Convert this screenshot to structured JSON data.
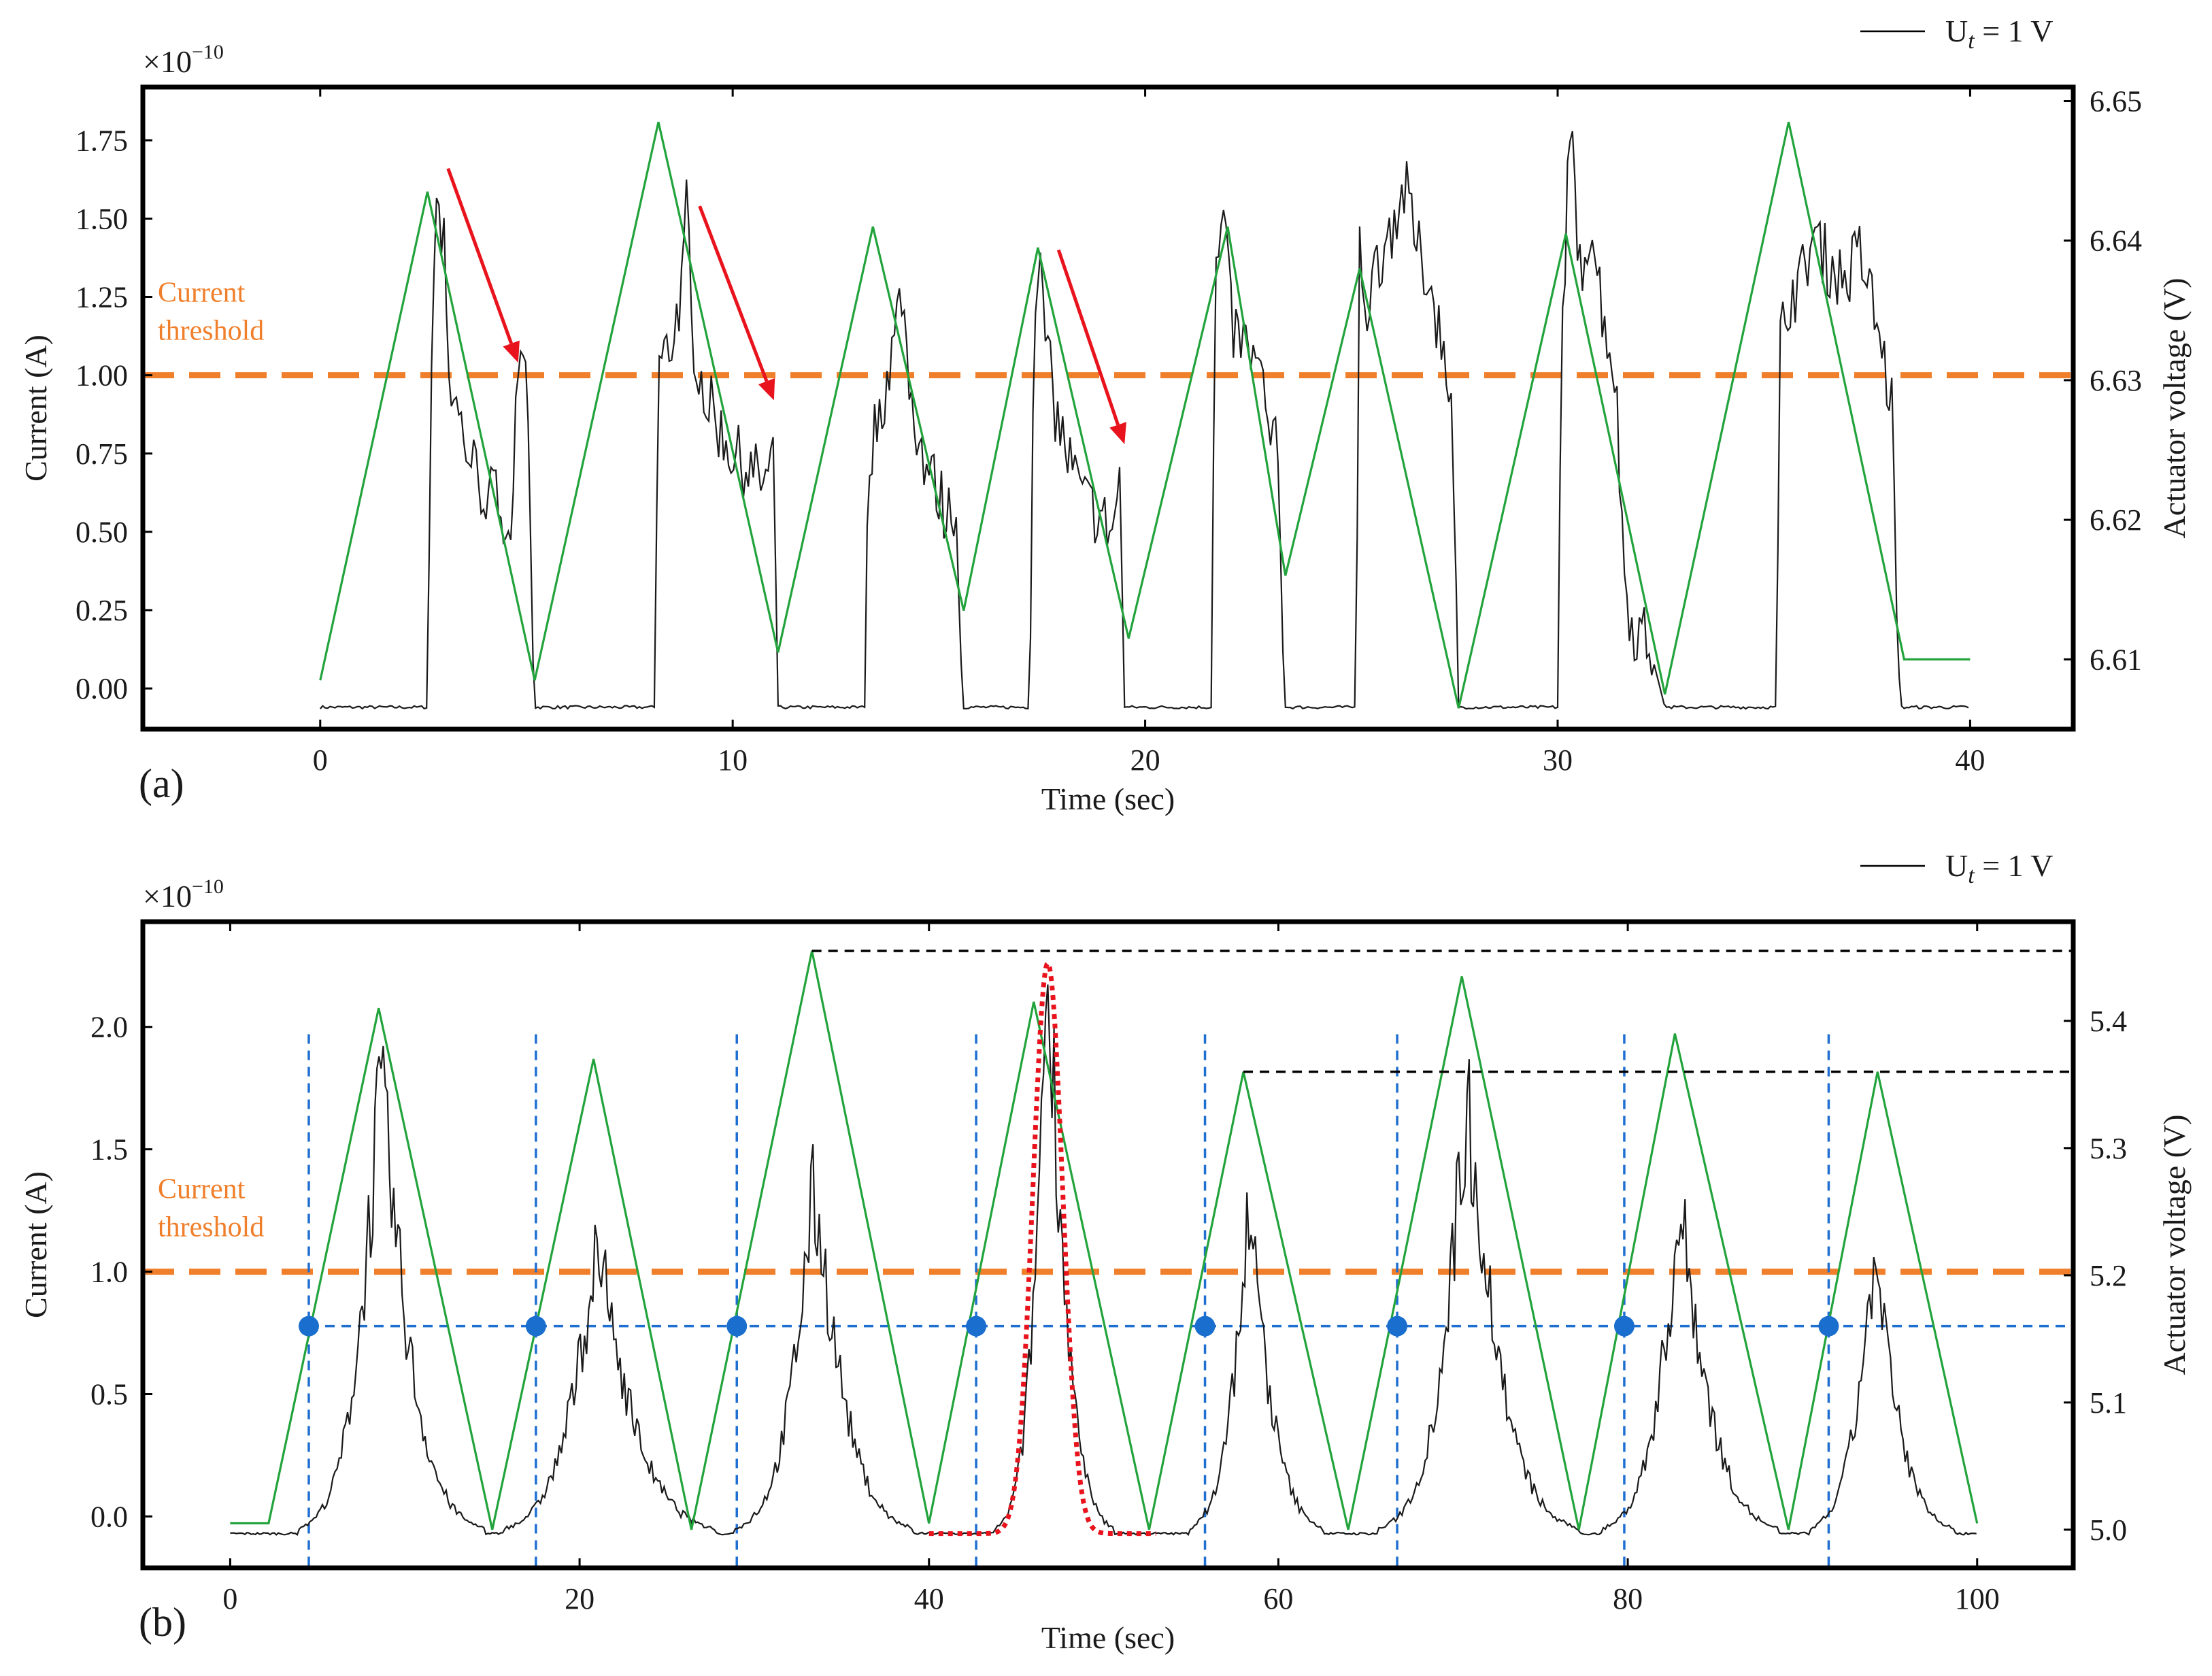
{
  "chart_data": [
    {
      "type": "line",
      "panel_label": "(a)",
      "xlabel": "Time (sec)",
      "ylabel": "Current (A)",
      "y2label": "Actuator voltage (V)",
      "y_scale_label": "×10",
      "y_scale_exponent": "−10",
      "xlim": [
        -4.3,
        42.5
      ],
      "ylim": [
        -0.13,
        1.92
      ],
      "y2lim": [
        6.605,
        6.651
      ],
      "xticks": [
        0,
        10,
        20,
        30,
        40
      ],
      "xtick_labels": [
        "0",
        "10",
        "20",
        "30",
        "40"
      ],
      "yticks": [
        0,
        0.25,
        0.5,
        0.75,
        1.0,
        1.25,
        1.5,
        1.75
      ],
      "ytick_labels": [
        "0.00",
        "0.25",
        "0.50",
        "0.75",
        "1.00",
        "1.25",
        "1.50",
        "1.75"
      ],
      "y2ticks": [
        6.61,
        6.62,
        6.63,
        6.64,
        6.65
      ],
      "y2tick_labels": [
        "6.61",
        "6.62",
        "6.63",
        "6.64",
        "6.65"
      ],
      "legend": {
        "label_base": "U",
        "label_sub": "t",
        "label_rest": " = 1 V",
        "position": "top-right",
        "color": "#000000"
      },
      "threshold": {
        "value": 1.0,
        "label_line1": "Current",
        "label_line2": "threshold",
        "color": "#f07f2b"
      },
      "voltage_series": {
        "name": "Actuator voltage",
        "color": "#22a33c",
        "x": [
          0,
          2.6,
          5.2,
          8.2,
          11.1,
          13.4,
          15.6,
          17.4,
          19.6,
          22.0,
          23.4,
          25.2,
          27.6,
          30.2,
          32.6,
          35.6,
          38.4,
          40.0
        ],
        "y": [
          6.6085,
          6.6435,
          6.6085,
          6.6485,
          6.6105,
          6.641,
          6.6135,
          6.6395,
          6.6115,
          6.641,
          6.616,
          6.638,
          6.6065,
          6.6405,
          6.6075,
          6.6485,
          6.61,
          6.61
        ]
      },
      "current_series": {
        "name": "Ut = 1 V",
        "color": "#1a1a1a",
        "baseline": -0.06,
        "pulses": [
          {
            "start": 2.6,
            "end": 5.2,
            "points": [
              [
                2.6,
                -0.06
              ],
              [
                2.7,
                1.1
              ],
              [
                2.8,
                1.65
              ],
              [
                2.9,
                1.4
              ],
              [
                3.0,
                1.55
              ],
              [
                3.1,
                1.0
              ],
              [
                3.3,
                0.9
              ],
              [
                3.6,
                0.75
              ],
              [
                4.0,
                0.62
              ],
              [
                4.4,
                0.6
              ],
              [
                4.6,
                0.48
              ],
              [
                4.8,
                1.0
              ],
              [
                5.0,
                0.95
              ],
              [
                5.2,
                -0.06
              ]
            ]
          },
          {
            "start": 8.1,
            "end": 11.1,
            "points": [
              [
                8.1,
                -0.06
              ],
              [
                8.2,
                1.02
              ],
              [
                8.5,
                1.1
              ],
              [
                8.8,
                1.3
              ],
              [
                8.9,
                1.58
              ],
              [
                9.0,
                1.15
              ],
              [
                9.3,
                0.95
              ],
              [
                9.6,
                0.85
              ],
              [
                10.0,
                0.75
              ],
              [
                10.4,
                0.7
              ],
              [
                10.8,
                0.65
              ],
              [
                11.0,
                0.7
              ],
              [
                11.1,
                -0.06
              ]
            ]
          },
          {
            "start": 13.2,
            "end": 15.6,
            "points": [
              [
                13.2,
                -0.06
              ],
              [
                13.3,
                0.75
              ],
              [
                13.6,
                0.9
              ],
              [
                13.9,
                1.1
              ],
              [
                14.1,
                1.28
              ],
              [
                14.3,
                0.95
              ],
              [
                14.6,
                0.75
              ],
              [
                14.9,
                0.65
              ],
              [
                15.2,
                0.55
              ],
              [
                15.4,
                0.6
              ],
              [
                15.6,
                -0.06
              ]
            ]
          },
          {
            "start": 17.2,
            "end": 19.5,
            "points": [
              [
                17.2,
                -0.06
              ],
              [
                17.3,
                1.2
              ],
              [
                17.4,
                1.4
              ],
              [
                17.6,
                1.1
              ],
              [
                17.8,
                0.9
              ],
              [
                18.1,
                0.75
              ],
              [
                18.5,
                0.6
              ],
              [
                18.9,
                0.55
              ],
              [
                19.2,
                0.5
              ],
              [
                19.4,
                0.68
              ],
              [
                19.5,
                -0.06
              ]
            ]
          },
          {
            "start": 21.6,
            "end": 23.4,
            "points": [
              [
                21.6,
                -0.06
              ],
              [
                21.7,
                1.3
              ],
              [
                21.9,
                1.5
              ],
              [
                22.1,
                1.15
              ],
              [
                22.4,
                1.1
              ],
              [
                22.8,
                1.0
              ],
              [
                23.0,
                0.8
              ],
              [
                23.2,
                0.75
              ],
              [
                23.4,
                -0.06
              ]
            ]
          },
          {
            "start": 25.1,
            "end": 27.6,
            "points": [
              [
                25.1,
                -0.06
              ],
              [
                25.2,
                1.4
              ],
              [
                25.4,
                1.2
              ],
              [
                25.6,
                1.35
              ],
              [
                25.9,
                1.45
              ],
              [
                26.3,
                1.6
              ],
              [
                26.6,
                1.4
              ],
              [
                26.9,
                1.3
              ],
              [
                27.2,
                1.1
              ],
              [
                27.4,
                1.0
              ],
              [
                27.6,
                -0.06
              ]
            ]
          },
          {
            "start": 30.0,
            "end": 32.6,
            "points": [
              [
                30.0,
                -0.06
              ],
              [
                30.1,
                1.1
              ],
              [
                30.3,
                1.85
              ],
              [
                30.5,
                1.3
              ],
              [
                30.8,
                1.5
              ],
              [
                31.1,
                1.2
              ],
              [
                31.4,
                1.0
              ],
              [
                31.6,
                0.4
              ],
              [
                31.8,
                0.2
              ],
              [
                32.2,
                0.15
              ],
              [
                32.6,
                -0.06
              ]
            ]
          },
          {
            "start": 35.3,
            "end": 38.3,
            "points": [
              [
                35.3,
                -0.06
              ],
              [
                35.4,
                1.1
              ],
              [
                35.6,
                1.25
              ],
              [
                35.9,
                1.3
              ],
              [
                36.2,
                1.45
              ],
              [
                36.6,
                1.35
              ],
              [
                37.0,
                1.3
              ],
              [
                37.3,
                1.4
              ],
              [
                37.6,
                1.25
              ],
              [
                37.9,
                1.05
              ],
              [
                38.1,
                0.9
              ],
              [
                38.3,
                -0.06
              ]
            ]
          }
        ]
      },
      "arrows": [
        {
          "x1": 3.1,
          "y1": 1.66,
          "x2": 4.8,
          "y2": 1.04
        },
        {
          "x1": 9.2,
          "y1": 1.54,
          "x2": 11.0,
          "y2": 0.92
        },
        {
          "x1": 17.9,
          "y1": 1.4,
          "x2": 19.5,
          "y2": 0.78
        }
      ],
      "arrow_color": "#e8131c"
    },
    {
      "type": "line",
      "panel_label": "(b)",
      "xlabel": "Time (sec)",
      "ylabel": "Current (A)",
      "y2label": "Actuator voltage (V)",
      "y_scale_label": "×10",
      "y_scale_exponent": "−10",
      "xlim": [
        -5,
        105.5
      ],
      "ylim": [
        -0.21,
        2.43
      ],
      "y2lim": [
        4.97,
        5.478
      ],
      "xticks": [
        0,
        20,
        40,
        60,
        80,
        100
      ],
      "xtick_labels": [
        "0",
        "20",
        "40",
        "60",
        "80",
        "100"
      ],
      "yticks": [
        0,
        0.5,
        1.0,
        1.5,
        2.0
      ],
      "ytick_labels": [
        "0.0",
        "0.5",
        "1.0",
        "1.5",
        "2.0"
      ],
      "y2ticks": [
        5.0,
        5.1,
        5.2,
        5.3,
        5.4
      ],
      "y2tick_labels": [
        "5.0",
        "5.1",
        "5.2",
        "5.3",
        "5.4"
      ],
      "legend": {
        "label_base": "U",
        "label_sub": "t",
        "label_rest": " = 1 V",
        "position": "top-right",
        "color": "#000000"
      },
      "threshold": {
        "value": 1.0,
        "label_line1": "Current",
        "label_line2": "threshold",
        "color": "#f07f2b"
      },
      "voltage_series": {
        "name": "Actuator voltage",
        "color": "#22a33c",
        "x": [
          0,
          2.2,
          8.5,
          15.0,
          20.8,
          26.4,
          33.3,
          40.0,
          46.0,
          52.6,
          58.0,
          64.0,
          70.5,
          77.2,
          82.7,
          89.2,
          94.3,
          100.0
        ],
        "y": [
          5.005,
          5.005,
          5.41,
          5.0,
          5.37,
          5.0,
          5.455,
          5.005,
          5.415,
          5.0,
          5.36,
          5.0,
          5.435,
          5.0,
          5.39,
          5.0,
          5.36,
          5.005
        ]
      },
      "current_series": {
        "name": "Ut = 1 V",
        "color": "#1a1a1a",
        "baseline": -0.07,
        "pulses": [
          {
            "center": 8.6,
            "peak": 1.7,
            "width": 1.3
          },
          {
            "center": 21.0,
            "peak": 1.05,
            "width": 1.6
          },
          {
            "center": 33.4,
            "peak": 1.3,
            "width": 1.3
          },
          {
            "center": 46.8,
            "peak": 2.2,
            "width": 0.8
          },
          {
            "center": 58.3,
            "peak": 1.2,
            "width": 1.0
          },
          {
            "center": 70.8,
            "peak": 1.65,
            "width": 1.4
          },
          {
            "center": 83.0,
            "peak": 1.2,
            "width": 1.3
          },
          {
            "center": 94.1,
            "peak": 1.0,
            "width": 1.1
          }
        ]
      },
      "gaussian_fit": {
        "center": 46.8,
        "amplitude": 2.33,
        "sigma": 0.85,
        "offset": -0.07,
        "x_range": [
          40.0,
          53.0
        ],
        "color": "#e8131c"
      },
      "vertical_markers": {
        "x": [
          4.5,
          17.5,
          29.0,
          42.7,
          55.8,
          66.8,
          79.8,
          91.5
        ],
        "y_top": 1.97,
        "color": "#1f6fd1"
      },
      "crossing_points": {
        "x": [
          4.5,
          17.5,
          29.0,
          42.7,
          55.8,
          66.8,
          79.8,
          91.5
        ],
        "voltage_level": 5.16,
        "color": "#1a6fce"
      },
      "black_dashed_levels": [
        {
          "voltage": 5.455,
          "x_start": 33.3,
          "x_end": 105.5
        },
        {
          "voltage": 5.36,
          "x_start": 58.0,
          "x_end": 105.5
        }
      ]
    }
  ]
}
